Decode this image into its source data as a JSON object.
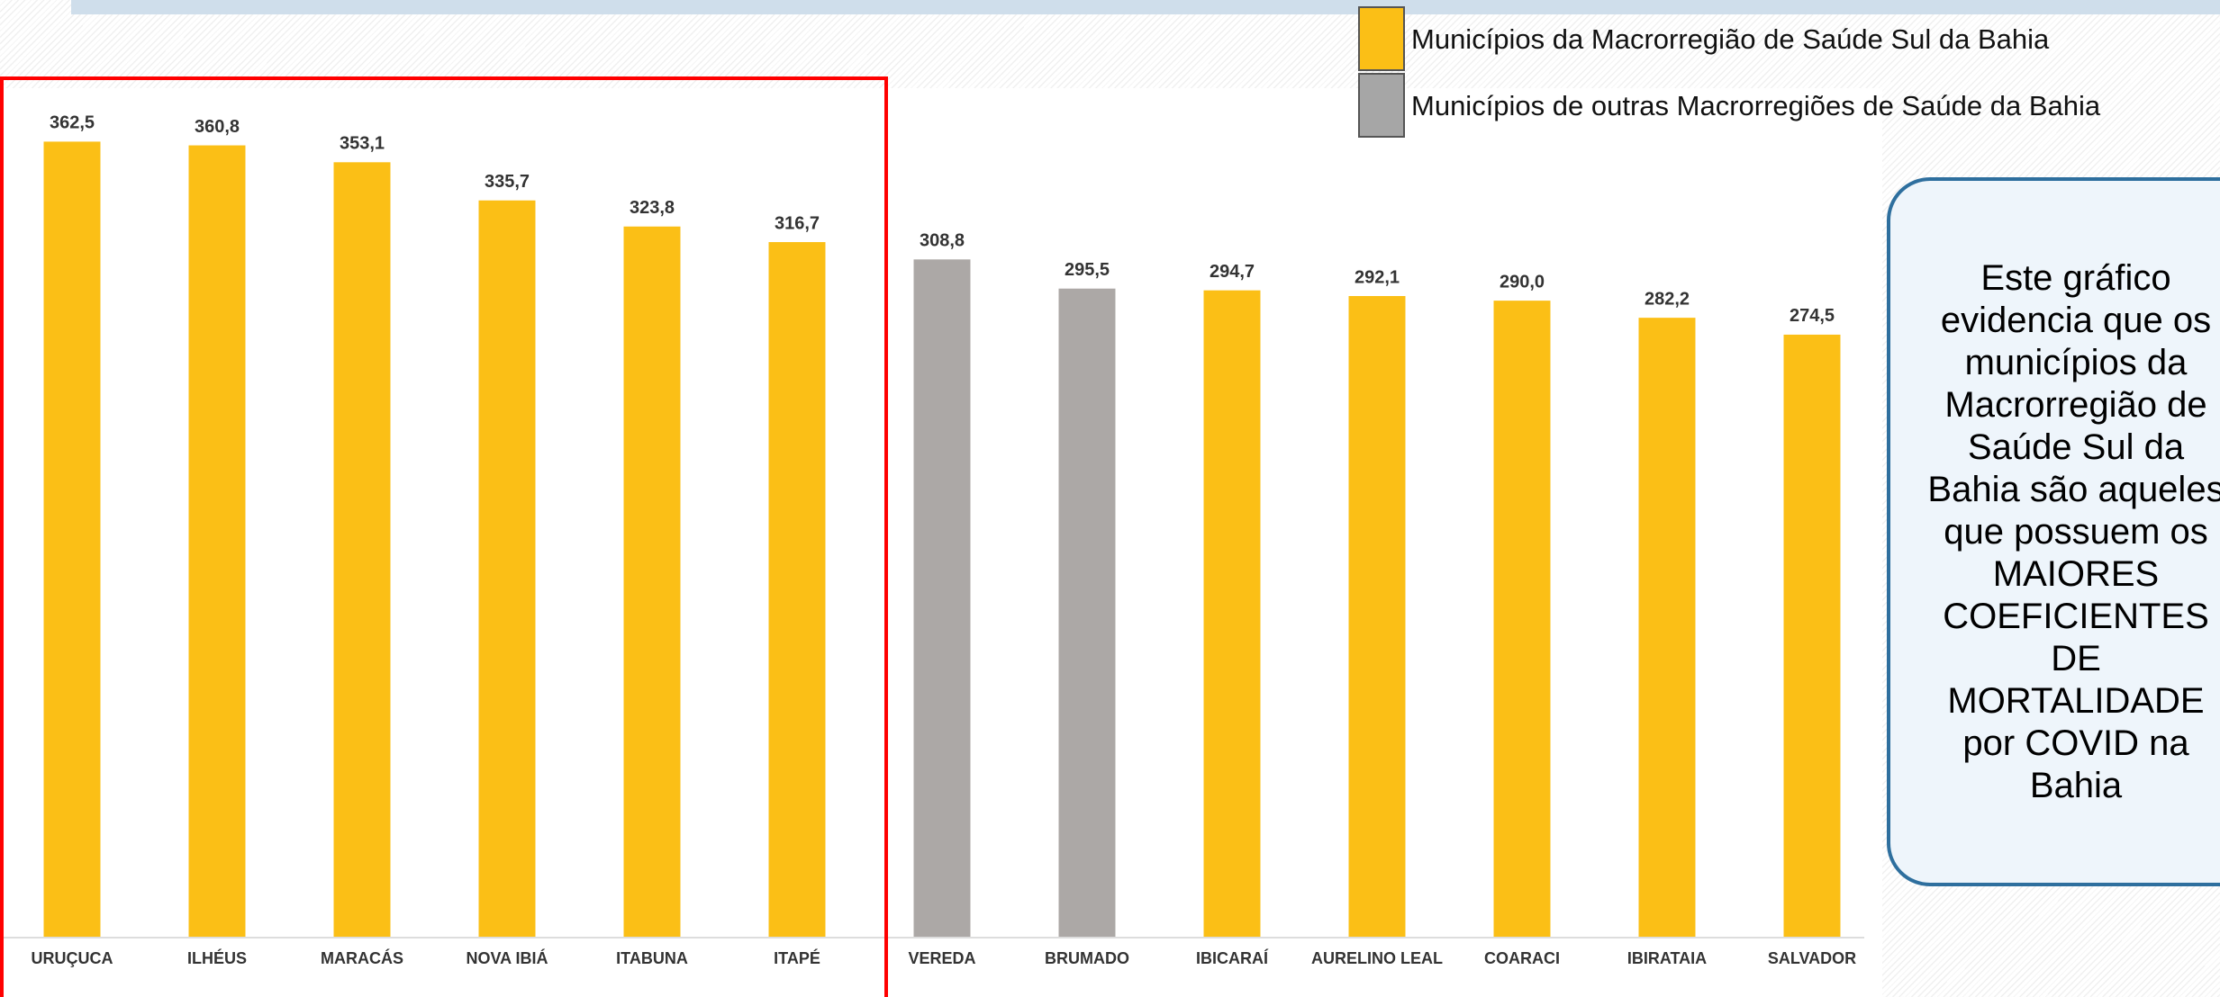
{
  "chart_data": {
    "type": "bar",
    "categories": [
      "URUÇUCA",
      "ILHÉUS",
      "MARACÁS",
      "NOVA IBIÁ",
      "ITABUNA",
      "ITAPÉ",
      "VEREDA",
      "BRUMADO",
      "IBICARAÍ",
      "AURELINO LEAL",
      "COARACI",
      "IBIRATAIA",
      "SALVADOR"
    ],
    "values": [
      362.5,
      360.8,
      353.1,
      335.7,
      323.8,
      316.7,
      308.8,
      295.5,
      294.7,
      292.1,
      290.0,
      282.2,
      274.5
    ],
    "value_labels": [
      "362,5",
      "360,8",
      "353,1",
      "335,7",
      "323,8",
      "316,7",
      "308,8",
      "295,5",
      "294,7",
      "292,1",
      "290,0",
      "282,2",
      "274,5"
    ],
    "colors": [
      "#fbbf16",
      "#fbbf16",
      "#fbbf16",
      "#fbbf16",
      "#fbbf16",
      "#fbbf16",
      "#aca8a6",
      "#aca8a6",
      "#fbbf16",
      "#fbbf16",
      "#fbbf16",
      "#fbbf16",
      "#fbbf16"
    ],
    "legend": [
      {
        "name": "Municípios da Macrorregião de Saúde Sul da Bahia",
        "color": "#fbbf16"
      },
      {
        "name": "Municípios de outras Macrorregiões de Saúde da Bahia",
        "color": "#a6a6a6"
      }
    ],
    "ylim": [
      0,
      400
    ],
    "annotation": "Este gráfico evidencia que os municípios da Macrorregião de Saúde Sul da Bahia são aqueles que possuem os MAIORES COEFICIENTES DE MORTALIDADE por COVID na Bahia"
  }
}
